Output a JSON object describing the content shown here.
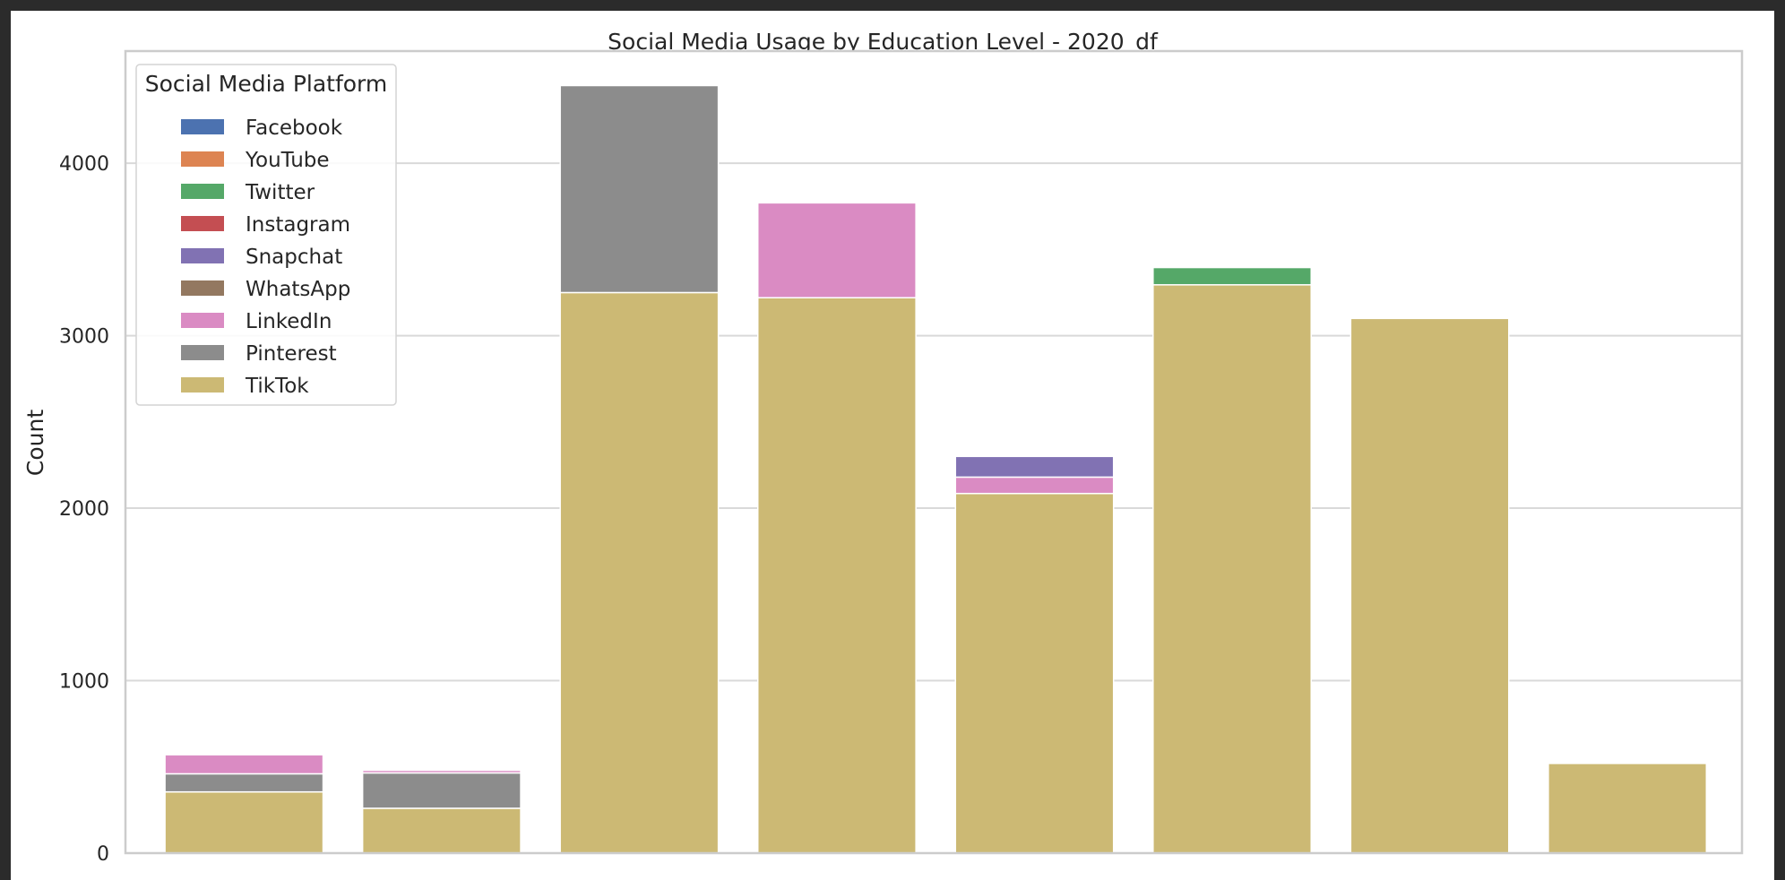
{
  "chart_data": {
    "type": "bar",
    "stacked": true,
    "title": "Social Media Usage by Education Level - 2020_df",
    "xlabel": "",
    "ylabel": "Count",
    "ylim": [
      0,
      4650
    ],
    "yticks": [
      0,
      1000,
      2000,
      3000,
      4000
    ],
    "grid": true,
    "legend": {
      "title": "Social Media Platform",
      "placement": "top-left"
    },
    "categories": [
      "",
      "",
      "",
      "",
      "",
      "",
      "",
      ""
    ],
    "series": [
      {
        "name": "Facebook",
        "color": "#4c72b0",
        "values": [
          0,
          0,
          0,
          0,
          0,
          0,
          0,
          0
        ]
      },
      {
        "name": "YouTube",
        "color": "#dd8452",
        "values": [
          0,
          0,
          0,
          0,
          0,
          0,
          0,
          0
        ]
      },
      {
        "name": "Twitter",
        "color": "#55a868",
        "values": [
          0,
          0,
          0,
          0,
          0,
          100,
          0,
          0
        ]
      },
      {
        "name": "Instagram",
        "color": "#c44e52",
        "values": [
          0,
          0,
          0,
          0,
          0,
          0,
          0,
          0
        ]
      },
      {
        "name": "Snapchat",
        "color": "#8172b3",
        "values": [
          0,
          0,
          0,
          0,
          120,
          0,
          0,
          0
        ]
      },
      {
        "name": "WhatsApp",
        "color": "#937860",
        "values": [
          0,
          0,
          0,
          0,
          0,
          0,
          0,
          0
        ]
      },
      {
        "name": "LinkedIn",
        "color": "#da8bc3",
        "values": [
          110,
          15,
          0,
          550,
          95,
          0,
          0,
          0
        ]
      },
      {
        "name": "Pinterest",
        "color": "#8c8c8c",
        "values": [
          105,
          205,
          1200,
          0,
          0,
          0,
          0,
          0
        ]
      },
      {
        "name": "TikTok",
        "color": "#ccb974",
        "values": [
          355,
          260,
          3250,
          3220,
          2085,
          3295,
          3100,
          520
        ]
      }
    ]
  }
}
